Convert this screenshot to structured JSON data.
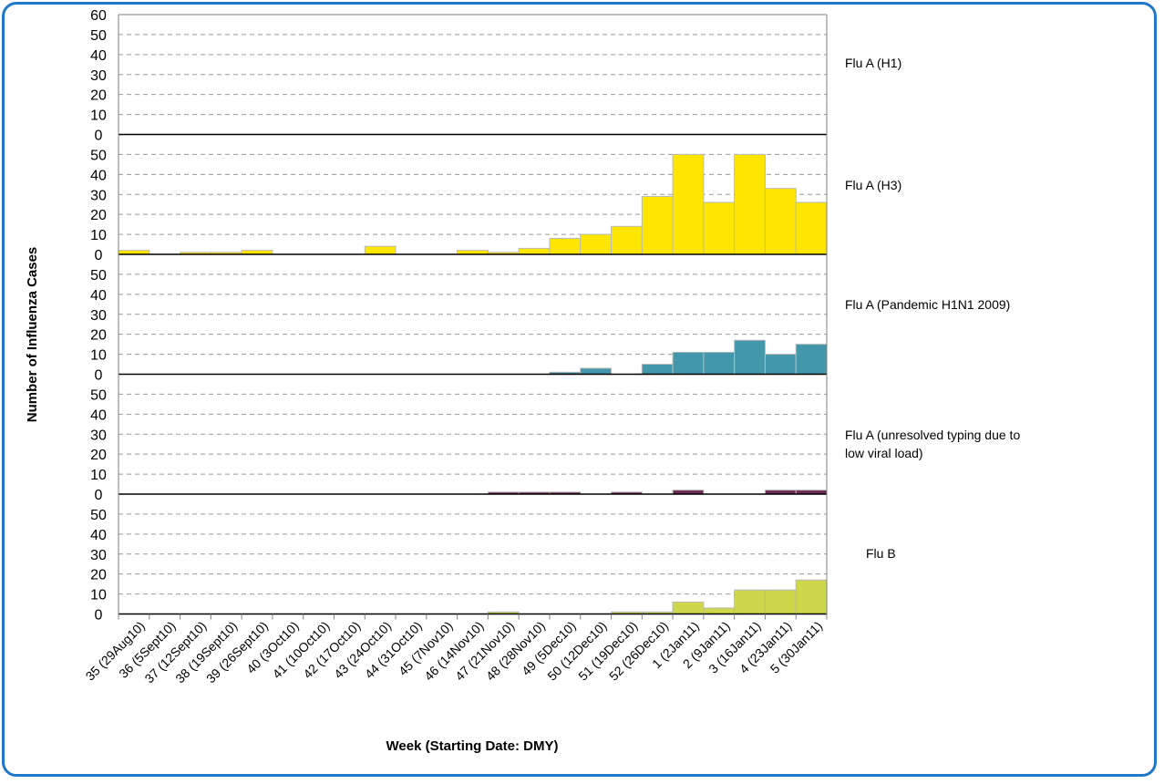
{
  "chart_data": {
    "type": "bar",
    "xlabel": "Week (Starting Date: DMY)",
    "ylabel": "Number of Influenza Cases",
    "ylim": [
      0,
      60
    ],
    "yticks": [
      "0",
      "10",
      "20",
      "30",
      "40",
      "50",
      "60"
    ],
    "grid": true,
    "categories": [
      "35 (29Aug10)",
      "36 (5Sept10)",
      "37 (12Sept10)",
      "38 (19Sept10)",
      "39 (26Sept10)",
      "40 (3Oct10)",
      "41 (10Oct10)",
      "42 (17Oct10)",
      "43 (24Oct10)",
      "44 (31Oct10)",
      "45 (7Nov10)",
      "46 (14Nov10)",
      "47 (21Nov10)",
      "48 (28Nov10)",
      "49 (5Dec10)",
      "50 (12Dec10)",
      "51 (19Dec10)",
      "52 (26Dec10)",
      "1 (2Jan11)",
      "2 (9Jan11)",
      "3 (16Jan11)",
      "4 (23Jan11)",
      "5 (30Jan11)"
    ],
    "series": [
      {
        "name": "Flu A (H1)",
        "color": "#ffff00",
        "values": [
          0,
          0,
          0,
          0,
          0,
          0,
          0,
          0,
          0,
          0,
          0,
          0,
          0,
          0,
          0,
          0,
          0,
          0,
          0,
          0,
          0,
          0,
          0
        ]
      },
      {
        "name": "Flu A (H3)",
        "color": "#ffe600",
        "values": [
          2,
          0,
          1,
          1,
          2,
          0,
          0,
          0,
          4,
          0,
          0,
          2,
          1,
          3,
          8,
          10,
          14,
          29,
          50,
          26,
          50,
          33,
          26
        ]
      },
      {
        "name": "Flu A (Pandemic H1N1 2009)",
        "color": "#4298aa",
        "values": [
          0,
          0,
          0,
          0,
          0,
          0,
          0,
          0,
          0,
          0,
          0,
          0,
          0,
          0,
          1,
          3,
          0,
          5,
          11,
          11,
          17,
          10,
          15
        ]
      },
      {
        "name": "Flu A (unresolved typing due to low viral load)",
        "color": "#6a2a52",
        "values": [
          0,
          0,
          0,
          0,
          0,
          0,
          0,
          0,
          0,
          0,
          0,
          0,
          1,
          1,
          1,
          0,
          1,
          0,
          2,
          0,
          0,
          2,
          2
        ]
      },
      {
        "name": "Flu B",
        "color": "#cfd84a",
        "values": [
          0,
          0,
          0,
          0,
          0,
          0,
          0,
          0,
          0,
          0,
          0,
          0,
          1,
          0,
          0,
          0,
          1,
          1,
          6,
          3,
          12,
          12,
          17
        ]
      }
    ]
  }
}
